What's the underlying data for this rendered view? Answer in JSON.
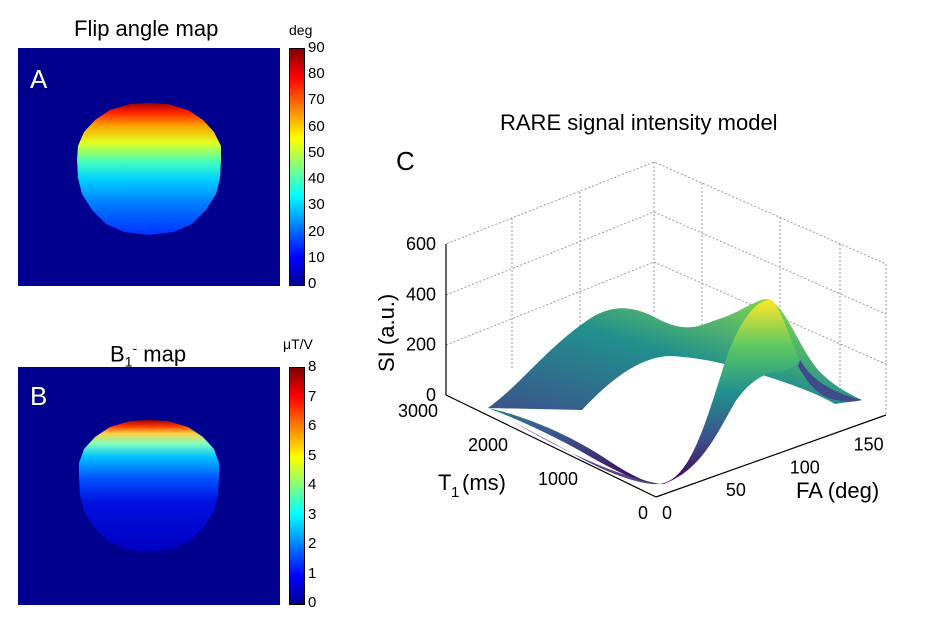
{
  "panels": {
    "a": {
      "letter": "A",
      "title": "Flip angle map",
      "colorbar": {
        "unit": "deg",
        "min": 0,
        "max": 90,
        "ticks": [
          "90",
          "80",
          "70",
          "60",
          "50",
          "40",
          "30",
          "20",
          "10",
          "0"
        ]
      }
    },
    "b": {
      "letter": "B",
      "title_main": "B",
      "title_sub": "1",
      "title_sup": "-",
      "title_rest": " map",
      "colorbar": {
        "unit": "μT/V",
        "min": 0,
        "max": 8,
        "ticks": [
          "8",
          "7",
          "6",
          "5",
          "4",
          "3",
          "2",
          "1",
          "0"
        ]
      }
    },
    "c": {
      "letter": "C",
      "title": "RARE signal intensity model"
    }
  },
  "chart_data": [
    {
      "type": "heatmap",
      "title": "Flip angle map",
      "colorbar_label": "deg",
      "zlim": [
        0,
        90
      ],
      "colormap": "jet",
      "description_values": {
        "top_of_disk": 90,
        "center_of_disk": 35,
        "bottom_of_disk": 15,
        "background": 0
      }
    },
    {
      "type": "heatmap",
      "title": "B1- map",
      "colorbar_label": "μT/V",
      "zlim": [
        0,
        8
      ],
      "colormap": "jet",
      "description_values": {
        "top_of_disk": 8,
        "center_of_disk": 1.5,
        "bottom_of_disk": 0.5,
        "background": 0
      }
    },
    {
      "type": "surface",
      "title": "RARE signal intensity model",
      "xlabel": "FA (deg)",
      "ylabel": "T1 (ms)",
      "zlabel": "SI (a.u.)",
      "xlim": [
        0,
        180
      ],
      "ylim": [
        0,
        3000
      ],
      "zlim": [
        0,
        600
      ],
      "xticks": [
        0,
        50,
        100,
        150
      ],
      "yticks": [
        0,
        1000,
        2000,
        3000
      ],
      "zticks": [
        0,
        200,
        400,
        600
      ],
      "colormap": "viridis",
      "features": {
        "peak_fa_deg": 120,
        "peak_si": 400,
        "ridge_fa_deg": 45,
        "ridge_si": 330
      }
    }
  ],
  "colors": {
    "map_background": "#00008f",
    "grid": "#9a9a9a"
  }
}
